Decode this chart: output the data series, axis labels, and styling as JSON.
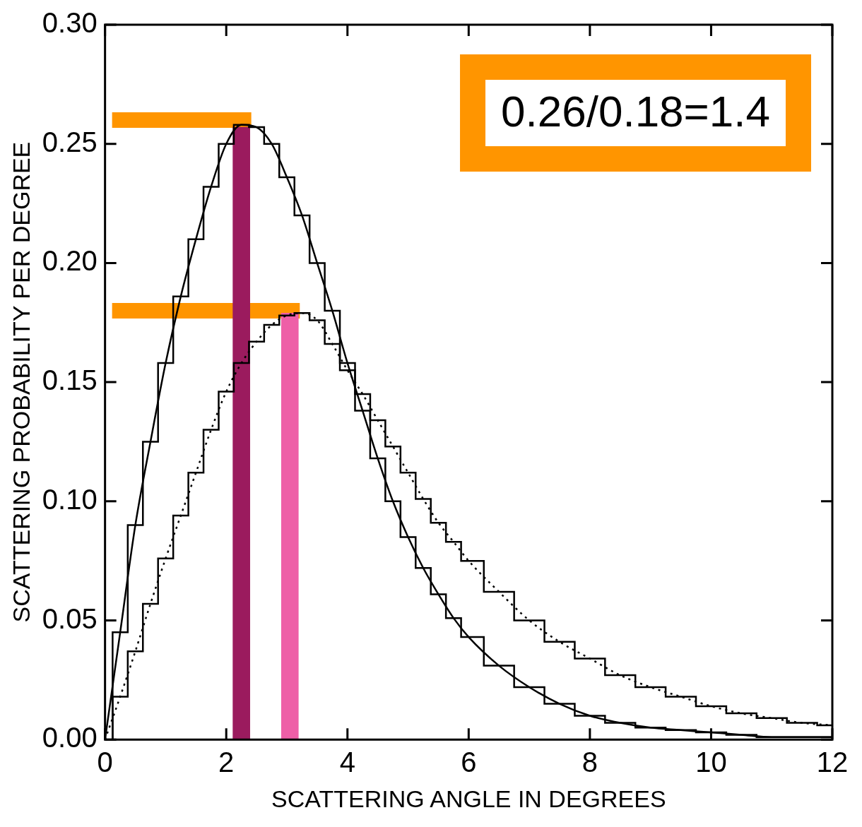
{
  "chart_data": {
    "type": "line",
    "xlabel": "SCATTERING ANGLE IN DEGREES",
    "ylabel": "SCATTERING PROBABILITY PER DEGREE",
    "xlim": [
      0,
      12
    ],
    "xticks": [
      0,
      2,
      4,
      6,
      8,
      10,
      12
    ],
    "ylim": [
      0,
      0.3
    ],
    "yticks": [
      {
        "value": 0,
        "label": "0.00"
      },
      {
        "value": 0.05,
        "label": "0.05"
      },
      {
        "value": 0.1,
        "label": "0.10"
      },
      {
        "value": 0.15,
        "label": "0.15"
      },
      {
        "value": 0.2,
        "label": "0.20"
      },
      {
        "value": 0.25,
        "label": "0.25"
      },
      {
        "value": 0.3,
        "label": "0.30"
      }
    ],
    "x": [
      0,
      0.25,
      0.5,
      0.75,
      1,
      1.25,
      1.5,
      1.75,
      2,
      2.25,
      2.5,
      2.75,
      3,
      3.25,
      3.5,
      3.75,
      4,
      4.25,
      4.5,
      4.75,
      5,
      5.25,
      5.5,
      5.75,
      6,
      6.5,
      7,
      7.5,
      8,
      8.5,
      9,
      9.5,
      10,
      10.5,
      11,
      11.5,
      12
    ],
    "series": [
      {
        "color": "#000000",
        "line_style": "solid",
        "values": [
          0,
          0.045,
          0.09,
          0.125,
          0.158,
          0.186,
          0.21,
          0.232,
          0.25,
          0.258,
          0.257,
          0.25,
          0.236,
          0.22,
          0.2,
          0.18,
          0.158,
          0.138,
          0.118,
          0.1,
          0.085,
          0.072,
          0.061,
          0.051,
          0.043,
          0.031,
          0.022,
          0.015,
          0.01,
          0.007,
          0.005,
          0.004,
          0.003,
          0.002,
          0.001,
          0.001,
          0.001
        ]
      },
      {
        "type": "step",
        "color": "#000000",
        "line_style": "solid",
        "values": [
          0,
          0.045,
          0.09,
          0.125,
          0.158,
          0.186,
          0.21,
          0.232,
          0.25,
          0.258,
          0.257,
          0.25,
          0.236,
          0.22,
          0.2,
          0.18,
          0.158,
          0.138,
          0.118,
          0.1,
          0.085,
          0.072,
          0.061,
          0.051,
          0.043,
          0.031,
          0.022,
          0.015,
          0.01,
          0.007,
          0.005,
          0.004,
          0.003,
          0.002,
          0.001,
          0.001,
          0.001
        ]
      },
      {
        "color": "#000000",
        "line_style": "dotted",
        "values": [
          0,
          0.018,
          0.037,
          0.057,
          0.076,
          0.094,
          0.112,
          0.13,
          0.146,
          0.158,
          0.167,
          0.174,
          0.178,
          0.179,
          0.176,
          0.166,
          0.155,
          0.145,
          0.134,
          0.123,
          0.112,
          0.101,
          0.091,
          0.083,
          0.075,
          0.062,
          0.05,
          0.041,
          0.034,
          0.027,
          0.022,
          0.018,
          0.014,
          0.011,
          0.009,
          0.007,
          0.006
        ]
      },
      {
        "type": "step",
        "color": "#000000",
        "line_style": "solid",
        "values": [
          0,
          0.018,
          0.037,
          0.057,
          0.076,
          0.094,
          0.112,
          0.13,
          0.146,
          0.158,
          0.167,
          0.174,
          0.178,
          0.179,
          0.176,
          0.166,
          0.155,
          0.145,
          0.134,
          0.123,
          0.112,
          0.101,
          0.091,
          0.083,
          0.075,
          0.062,
          0.05,
          0.041,
          0.034,
          0.027,
          0.022,
          0.018,
          0.014,
          0.011,
          0.009,
          0.007,
          0.006
        ]
      },
      {
        "type": "bar",
        "color": "#9b1b5e",
        "x": [
          2.25
        ],
        "values": [
          0.257
        ]
      },
      {
        "type": "bar",
        "color": "#ee5fa7",
        "x": [
          3.05
        ],
        "values": [
          0.179
        ]
      }
    ],
    "ref_lines": [
      {
        "axis": "y",
        "value": 0.26,
        "color": "#ff9500"
      },
      {
        "axis": "y",
        "value": 0.18,
        "color": "#ff9500"
      }
    ],
    "annotations": [
      "0.26/0.18=1.4"
    ]
  }
}
